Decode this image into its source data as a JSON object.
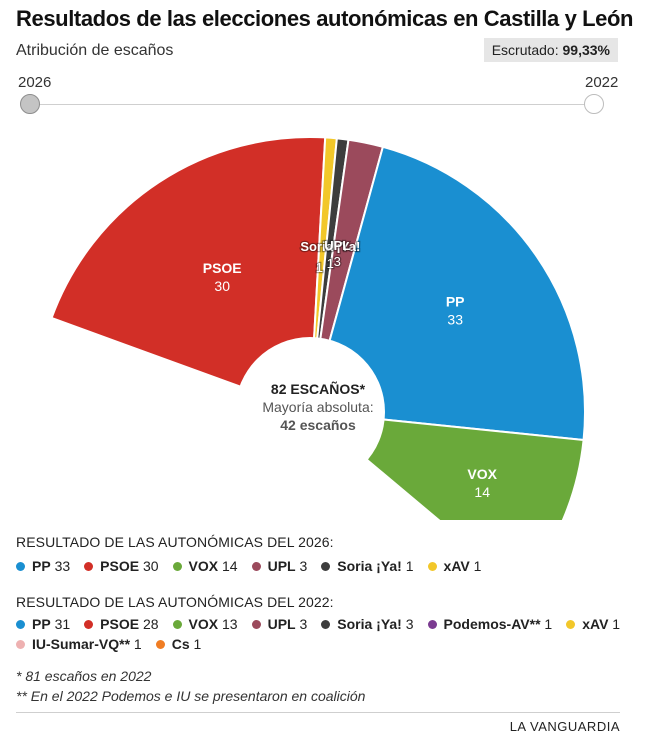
{
  "header": {
    "title": "Resultados de las elecciones autonómicas en Castilla y León",
    "subtitle": "Atribución de escaños",
    "escrutado_label": "Escrutado:",
    "escrutado_value": "99,33%"
  },
  "slider": {
    "left_year": "2026",
    "right_year": "2022"
  },
  "center": {
    "total": "82 ESCAÑOS*",
    "majority_line1": "Mayoría absoluta:",
    "majority_line2": "42 escaños"
  },
  "chart_data": {
    "type": "pie",
    "layout": "parliament-hemicycle",
    "total_seats": 82,
    "slices": [
      {
        "name": "PSOE",
        "value": 30,
        "color": "#d22f27"
      },
      {
        "name": "xAV",
        "value": 1,
        "color": "#f2c72a"
      },
      {
        "name": "Soria ¡Ya!",
        "value": 1,
        "color": "#3d3d3d"
      },
      {
        "name": "UPL",
        "value": 3,
        "color": "#9b4a5c"
      },
      {
        "name": "PP",
        "value": 33,
        "color": "#1a8fd1"
      },
      {
        "name": "VOX",
        "value": 14,
        "color": "#6aa93a"
      }
    ],
    "labels": [
      {
        "name": "PSOE",
        "value": "30"
      },
      {
        "name": "PP",
        "value": "33"
      },
      {
        "name": "VOX",
        "value": "14"
      },
      {
        "name": "UPL",
        "value": "3"
      },
      {
        "name": "Soria ¡Ya!",
        "value": "1"
      },
      {
        "name": "",
        "value": "1"
      }
    ]
  },
  "legend2026": {
    "title": "RESULTADO DE LAS AUTONÓMICAS DEL 2026:",
    "items": [
      {
        "name": "PP",
        "value": "33",
        "color": "#1a8fd1"
      },
      {
        "name": "PSOE",
        "value": "30",
        "color": "#d22f27"
      },
      {
        "name": "VOX",
        "value": "14",
        "color": "#6aa93a"
      },
      {
        "name": "UPL",
        "value": "3",
        "color": "#9b4a5c"
      },
      {
        "name": "Soria ¡Ya!",
        "value": "1",
        "color": "#3d3d3d"
      },
      {
        "name": "xAV",
        "value": "1",
        "color": "#f2c72a"
      }
    ]
  },
  "legend2022": {
    "title": "RESULTADO DE LAS AUTONÓMICAS DEL 2022:",
    "items": [
      {
        "name": "PP",
        "value": "31",
        "color": "#1a8fd1"
      },
      {
        "name": "PSOE",
        "value": "28",
        "color": "#d22f27"
      },
      {
        "name": "VOX",
        "value": "13",
        "color": "#6aa93a"
      },
      {
        "name": "UPL",
        "value": "3",
        "color": "#9b4a5c"
      },
      {
        "name": "Soria ¡Ya!",
        "value": "3",
        "color": "#3d3d3d"
      },
      {
        "name": "Podemos-AV**",
        "value": "1",
        "color": "#7b3b91"
      },
      {
        "name": "xAV",
        "value": "1",
        "color": "#f2c72a"
      },
      {
        "name": "IU-Sumar-VQ**",
        "value": "1",
        "color": "#eeb1b1"
      },
      {
        "name": "Cs",
        "value": "1",
        "color": "#f07d23"
      }
    ]
  },
  "notes": {
    "note1": "* 81 escaños en 2022",
    "note2": "** En el 2022 Podemos e IU se presentaron en coalición"
  },
  "footer": {
    "brand": "LA VANGUARDIA"
  }
}
